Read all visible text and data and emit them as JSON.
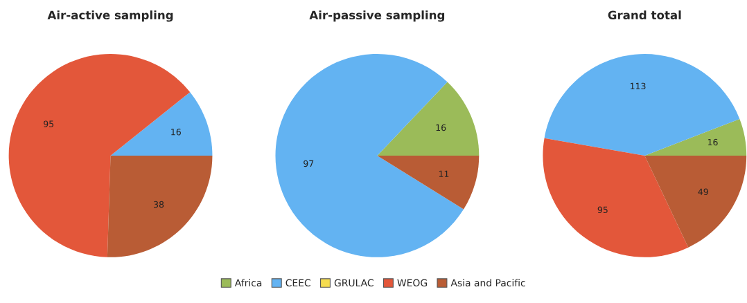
{
  "chart_data": [
    {
      "type": "pie",
      "title": "Air-active sampling",
      "categories": [
        "Africa",
        "CEEC",
        "GRULAC",
        "WEOG",
        "Asia and Pacific"
      ],
      "values": [
        0,
        16,
        0,
        95,
        38
      ],
      "colors": [
        "#9bbb59",
        "#63b3f2",
        "#f5dc50",
        "#e3573a",
        "#b95c35"
      ],
      "data_labels": true,
      "legend": "bottom"
    },
    {
      "type": "pie",
      "title": "Air-passive sampling",
      "categories": [
        null,
        null,
        null,
        null,
        null
      ],
      "values": [
        16,
        97,
        0,
        0,
        11
      ],
      "colors": [
        "#9bbb59",
        "#63b3f2",
        "#f5dc50",
        "#e3573a",
        "#b95c35"
      ],
      "data_labels": true
    },
    {
      "type": "pie",
      "title": "Grand total",
      "categories": [
        null,
        null,
        null,
        null,
        null
      ],
      "values": [
        16,
        113,
        0,
        95,
        49
      ],
      "colors": [
        "#9bbb59",
        "#63b3f2",
        "#f5dc50",
        "#e3573a",
        "#b95c35"
      ],
      "data_labels": true
    }
  ]
}
